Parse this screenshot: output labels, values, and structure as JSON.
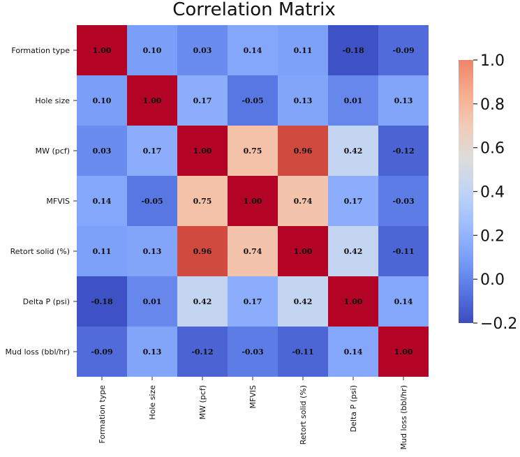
{
  "chart_data": {
    "type": "heatmap",
    "title": "Correlation Matrix",
    "row_labels": [
      "Formation type",
      "Hole size",
      "MW (pcf)",
      "MFVIS",
      "Retort solid (%)",
      "Delta P (psi)",
      "Mud loss (bbl/hr)"
    ],
    "col_labels": [
      "Formation type",
      "Hole size",
      "MW (pcf)",
      "MFVIS",
      "Retort solid (%)",
      "Delta P (psi)",
      "Mud loss (bbl/hr)"
    ],
    "values": [
      [
        1.0,
        0.1,
        0.03,
        0.14,
        0.11,
        -0.18,
        -0.09
      ],
      [
        0.1,
        1.0,
        0.17,
        -0.05,
        0.13,
        0.01,
        0.13
      ],
      [
        0.03,
        0.17,
        1.0,
        0.75,
        0.96,
        0.42,
        -0.12
      ],
      [
        0.14,
        -0.05,
        0.75,
        1.0,
        0.74,
        0.17,
        -0.03
      ],
      [
        0.11,
        0.13,
        0.96,
        0.74,
        1.0,
        0.42,
        -0.11
      ],
      [
        -0.18,
        0.01,
        0.42,
        0.17,
        0.42,
        1.0,
        0.14
      ],
      [
        -0.09,
        0.13,
        -0.12,
        -0.03,
        -0.11,
        0.14,
        1.0
      ]
    ],
    "cell_text": [
      [
        "1.00",
        "0.10",
        "0.03",
        "0.14",
        "0.11",
        "-0.18",
        "-0.09"
      ],
      [
        "0.10",
        "1.00",
        "0.17",
        "-0.05",
        "0.13",
        "0.01",
        "0.13"
      ],
      [
        "0.03",
        "0.17",
        "1.00",
        "0.75",
        "0.96",
        "0.42",
        "-0.12"
      ],
      [
        "0.14",
        "-0.05",
        "0.75",
        "1.00",
        "0.74",
        "0.17",
        "-0.03"
      ],
      [
        "0.11",
        "0.13",
        "0.96",
        "0.74",
        "1.00",
        "0.42",
        "-0.11"
      ],
      [
        "-0.18",
        "0.01",
        "0.42",
        "0.17",
        "0.42",
        "1.00",
        "0.14"
      ],
      [
        "-0.09",
        "0.13",
        "-0.12",
        "-0.03",
        "-0.11",
        "0.14",
        "1.00"
      ]
    ],
    "colormap": "coolwarm",
    "color_range": [
      -0.2,
      1.0
    ],
    "colorbar": {
      "ticks": [
        1.0,
        0.8,
        0.6,
        0.4,
        0.2,
        0.0,
        -0.2
      ],
      "tick_labels": [
        "1.0",
        "0.8",
        "0.6",
        "0.4",
        "0.2",
        "0.0",
        "−0.2"
      ],
      "placement": "right"
    }
  }
}
